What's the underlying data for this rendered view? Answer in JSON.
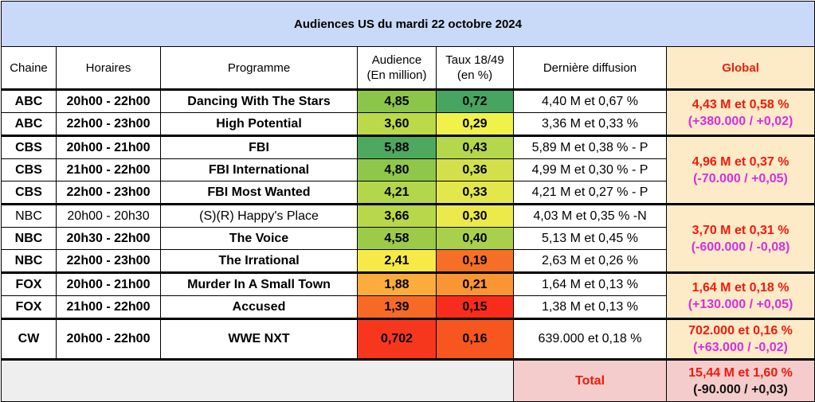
{
  "title": "Audiences US du mardi 22 octobre 2024",
  "headers": {
    "chaine": "Chaine",
    "horaires": "Horaires",
    "programme": "Programme",
    "audience_l1": "Audience",
    "audience_l2": "(En million)",
    "taux_l1": "Taux 18/49",
    "taux_l2": "(en %)",
    "derniere": "Dernière diffusion",
    "global": "Global"
  },
  "rows": [
    {
      "chaine": "ABC",
      "horaires": "20h00 - 22h00",
      "programme": "Dancing With The Stars",
      "audience": "4,85",
      "taux": "0,72",
      "derniere": "4,40 M et 0,67 %",
      "bold": true
    },
    {
      "chaine": "ABC",
      "horaires": "22h00 - 23h00",
      "programme": "High Potential",
      "audience": "3,60",
      "taux": "0,29",
      "derniere": "3,36 M et 0,33 %",
      "bold": true
    },
    {
      "chaine": "CBS",
      "horaires": "20h00 - 21h00",
      "programme": "FBI",
      "audience": "5,88",
      "taux": "0,43",
      "derniere": "5,89 M et 0,38 % - P",
      "bold": true
    },
    {
      "chaine": "CBS",
      "horaires": "21h00 - 22h00",
      "programme": "FBI International",
      "audience": "4,80",
      "taux": "0,36",
      "derniere": "4,99 M et 0,30 % - P",
      "bold": true
    },
    {
      "chaine": "CBS",
      "horaires": "22h00 - 23h00",
      "programme": "FBI Most Wanted",
      "audience": "4,21",
      "taux": "0,33",
      "derniere": "4,21 M et 0,27 % - P",
      "bold": true
    },
    {
      "chaine": "NBC",
      "horaires": "20h00 - 20h30",
      "programme": "(S)(R) Happy's Place",
      "audience": "3,66",
      "taux": "0,30",
      "derniere": "4,03 M et 0,35 % -N",
      "bold": false
    },
    {
      "chaine": "NBC",
      "horaires": "20h30 - 22h00",
      "programme": "The Voice",
      "audience": "4,58",
      "taux": "0,40",
      "derniere": "5,13 M et 0,45 %",
      "bold": true
    },
    {
      "chaine": "NBC",
      "horaires": "22h00 - 23h00",
      "programme": "The Irrational",
      "audience": "2,41",
      "taux": "0,19",
      "derniere": "2,63 M et 0,26 %",
      "bold": true
    },
    {
      "chaine": "FOX",
      "horaires": "20h00 - 21h00",
      "programme": "Murder In A Small Town",
      "audience": "1,88",
      "taux": "0,21",
      "derniere": "1,64 M et 0,13 %",
      "bold": true
    },
    {
      "chaine": "FOX",
      "horaires": "21h00 - 22h00",
      "programme": "Accused",
      "audience": "1,39",
      "taux": "0,15",
      "derniere": "1,38 M et 0,13 %",
      "bold": true
    },
    {
      "chaine": "CW",
      "horaires": "20h00 - 22h00",
      "programme": "WWE NXT",
      "audience": "0,702",
      "taux": "0,16",
      "derniere": "639.000 et 0,18 %",
      "bold": true
    }
  ],
  "globals": [
    {
      "value": "4,43 M et 0,58 %",
      "delta": "(+380.000 / +0,02)"
    },
    {
      "value": "4,96 M et 0,37 %",
      "delta": "(-70.000 / +0,05)"
    },
    {
      "value": "3,70 M et 0,31 %",
      "delta": "(-600.000 / -0,08)"
    },
    {
      "value": "1,64 M et 0,18 %",
      "delta": "(+130.000 / +0,05)"
    },
    {
      "value": "702.000 et 0,16 %",
      "delta": "(+63.000 / -0,02)"
    }
  ],
  "total": {
    "label": "Total",
    "value": "15,44 M et 1,60 %",
    "delta": "(-90.000 / +0,03)"
  },
  "colors": {
    "audience": [
      "#8bc549",
      "#bcd94a",
      "#4ea860",
      "#8fc74a",
      "#b4d64a",
      "#b9d74a",
      "#9ccb4a",
      "#f7ea48",
      "#fcac3c",
      "#f66a26",
      "#f7361e"
    ],
    "taux": [
      "#47a561",
      "#f0f24a",
      "#b4d74c",
      "#d3e04c",
      "#e4e74b",
      "#ebea4a",
      "#a8d04c",
      "#f66f27",
      "#fa9534",
      "#f72c1c",
      "#f7561f"
    ]
  }
}
